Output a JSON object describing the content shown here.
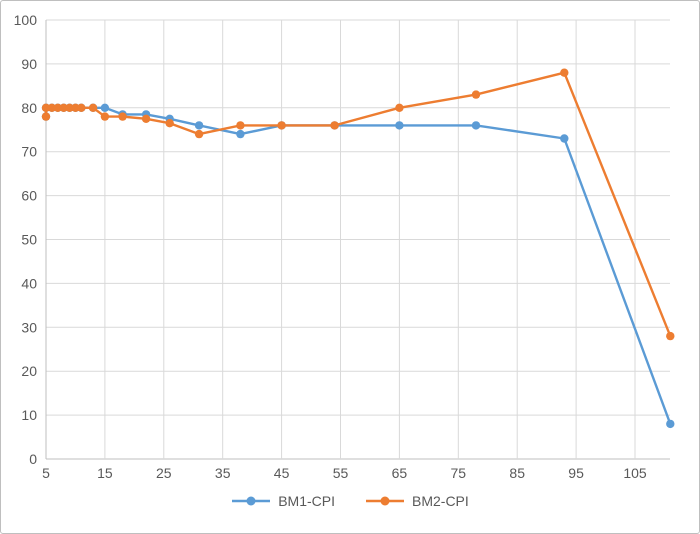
{
  "window": {
    "background": "#ffffff",
    "border_color": "#bfbfbf"
  },
  "chart_data": {
    "type": "line",
    "title": "",
    "xlabel": "",
    "ylabel": "",
    "x": [
      5,
      5,
      6,
      7,
      8,
      9,
      10,
      11,
      13,
      15,
      18,
      22,
      26,
      31,
      38,
      45,
      54,
      65,
      78,
      93,
      111
    ],
    "series": [
      {
        "name": "BM1-CPI",
        "color": "#5B9BD5",
        "values": [
          78,
          80,
          80,
          80,
          80,
          80,
          80,
          80,
          80,
          80,
          78.5,
          78.5,
          77.5,
          76,
          74,
          76,
          76,
          76,
          76,
          73,
          8
        ]
      },
      {
        "name": "BM2-CPI",
        "color": "#ED7D31",
        "values": [
          78,
          80,
          80,
          80,
          80,
          80,
          80,
          80,
          80,
          78,
          78,
          77.5,
          76.5,
          74,
          76,
          76,
          76,
          80,
          83,
          88,
          28
        ]
      }
    ],
    "xlim": [
      5,
      111
    ],
    "ylim": [
      0,
      100
    ],
    "x_ticks": [
      5,
      15,
      25,
      35,
      45,
      55,
      65,
      75,
      85,
      95,
      105
    ],
    "y_ticks": [
      0,
      10,
      20,
      30,
      40,
      50,
      60,
      70,
      80,
      90,
      100
    ],
    "grid": true,
    "gridline_color": "#D9D9D9",
    "axis_line_color": "#BFBFBF",
    "tick_label_color": "#595959",
    "legend_position": "bottom"
  }
}
